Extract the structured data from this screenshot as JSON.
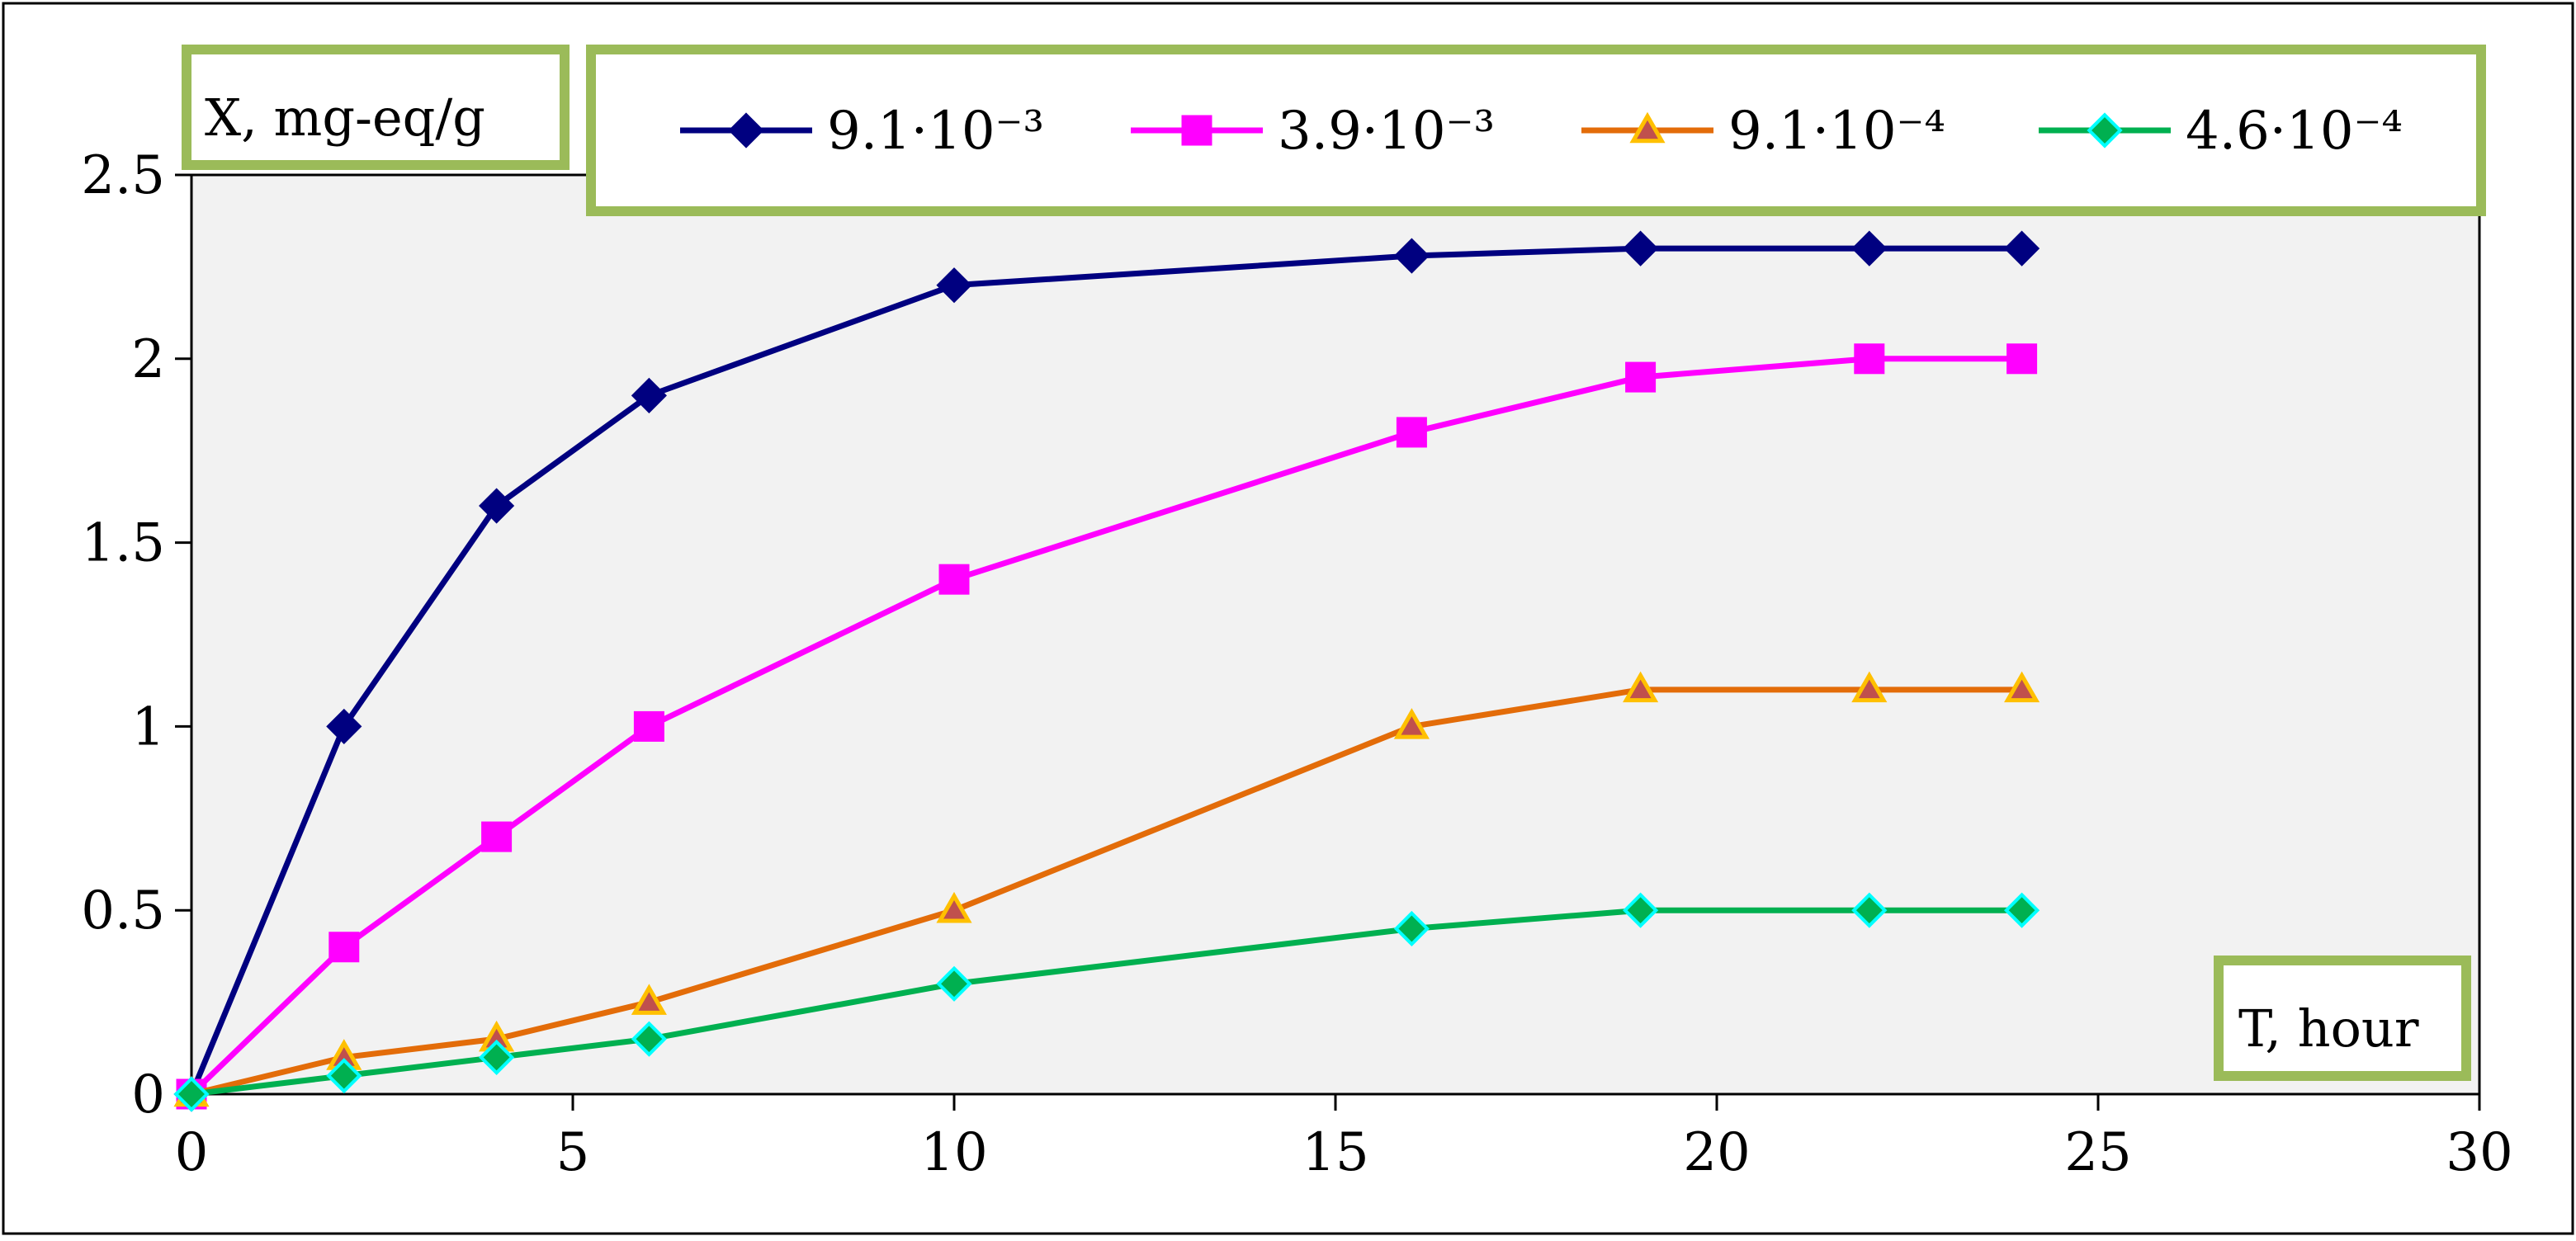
{
  "chart_data": {
    "type": "line",
    "ylabel": "X, mg-eq/g",
    "xlabel": "T, hour",
    "xlim": [
      0,
      30
    ],
    "ylim": [
      0,
      2.5
    ],
    "xticks": [
      0,
      5,
      10,
      15,
      20,
      25,
      30
    ],
    "yticks": [
      0,
      0.5,
      1,
      1.5,
      2,
      2.5
    ],
    "ytick_labels": [
      "0",
      "0.5",
      "1",
      "1.5",
      "2",
      "2.5"
    ],
    "grid": false,
    "legend_position": "top",
    "plot_background": "#f2f2f2",
    "label_box_border": "#9bbb59",
    "series": [
      {
        "name": "9.1·10⁻³",
        "color": "#000080",
        "marker": "diamond",
        "marker_fill": "#000080",
        "marker_stroke": "#000080",
        "x": [
          0,
          2,
          4,
          6,
          10,
          16,
          19,
          22,
          24
        ],
        "y": [
          0,
          1.0,
          1.6,
          1.9,
          2.2,
          2.28,
          2.3,
          2.3,
          2.3
        ]
      },
      {
        "name": "3.9·10⁻³",
        "color": "#ff00ff",
        "marker": "square",
        "marker_fill": "#ff00ff",
        "marker_stroke": "#ff00ff",
        "x": [
          0,
          2,
          4,
          6,
          10,
          16,
          19,
          22,
          24
        ],
        "y": [
          0,
          0.4,
          0.7,
          1.0,
          1.4,
          1.8,
          1.95,
          2.0,
          2.0
        ]
      },
      {
        "name": "9.1·10⁻⁴",
        "color": "#e36c09",
        "marker": "triangle",
        "marker_fill": "#c0504d",
        "marker_stroke": "#ffc000",
        "x": [
          0,
          2,
          4,
          6,
          10,
          16,
          19,
          22,
          24
        ],
        "y": [
          0,
          0.1,
          0.15,
          0.25,
          0.5,
          1.0,
          1.1,
          1.1,
          1.1
        ]
      },
      {
        "name": "4.6·10⁻⁴",
        "color": "#00b050",
        "marker": "diamond",
        "marker_fill": "#00b050",
        "marker_stroke": "#00ffff",
        "x": [
          0,
          2,
          4,
          6,
          10,
          16,
          19,
          22,
          24
        ],
        "y": [
          0,
          0.05,
          0.1,
          0.15,
          0.3,
          0.45,
          0.5,
          0.5,
          0.5
        ]
      }
    ]
  }
}
